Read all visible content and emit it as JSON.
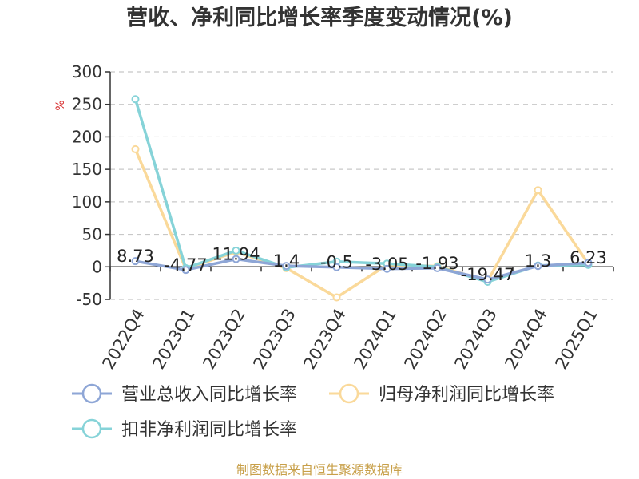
{
  "chart_data": {
    "type": "line",
    "title": "营收、净利同比增长率季度变动情况(%)",
    "ylabel": "%",
    "xlabel": "",
    "categories": [
      "2022Q4",
      "2023Q1",
      "2023Q2",
      "2023Q3",
      "2023Q4",
      "2024Q1",
      "2024Q2",
      "2024Q3",
      "2024Q4",
      "2025Q1"
    ],
    "ylim": [
      -50,
      300
    ],
    "yticks": [
      -50,
      0,
      50,
      100,
      150,
      200,
      250,
      300
    ],
    "grid": true,
    "legend_position": "bottom",
    "series": [
      {
        "name": "营业总收入同比增长率",
        "color": "#8ea6d6",
        "values": [
          8.73,
          -4.77,
          11.94,
          1.4,
          -0.5,
          -3.05,
          -1.93,
          -19.47,
          1.3,
          6.23
        ],
        "labels": [
          "8.73",
          "-4.77",
          "11.94",
          "1.4",
          "-0.5",
          "-3.05",
          "-1.93",
          "-19.47",
          "1.3",
          "6.23"
        ]
      },
      {
        "name": "归母净利润同比增长率",
        "color": "#fad99a",
        "values": [
          181,
          -3,
          23,
          -2,
          -47,
          3,
          1,
          -22,
          118,
          5
        ]
      },
      {
        "name": "扣非净利润同比增长率",
        "color": "#86d3d8",
        "values": [
          258,
          -2,
          25,
          -1,
          8,
          5,
          0,
          -23,
          2,
          3
        ]
      }
    ]
  },
  "footer": {
    "source": "制图数据来自恒生聚源数据库"
  }
}
